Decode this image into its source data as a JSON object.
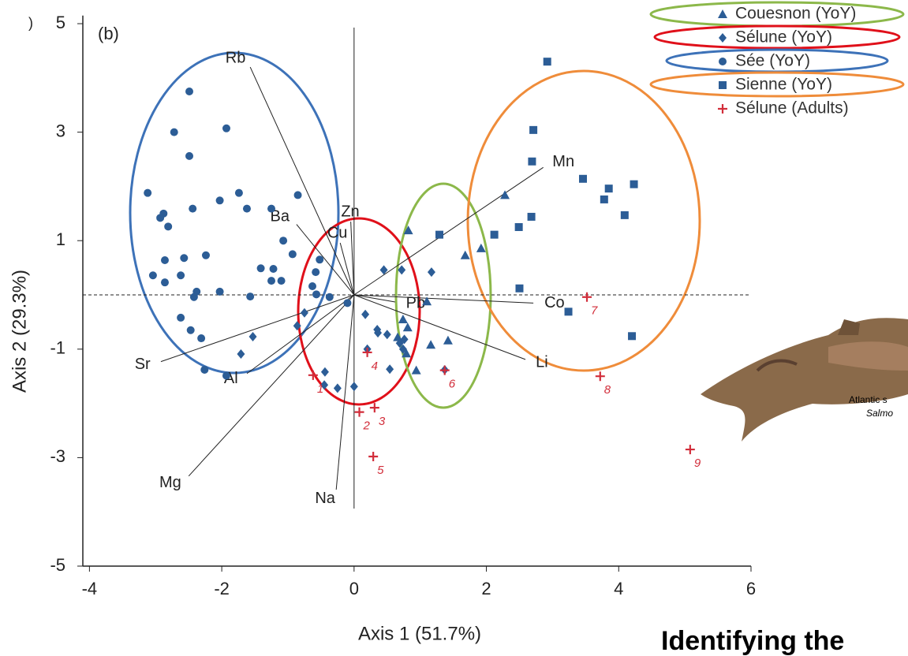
{
  "chart_data": {
    "type": "scatter",
    "panel_label": "(b)",
    "edge_fragment": ")",
    "x_label": "Axis 1 (51.7%)",
    "y_label": "Axis 2 (29.3%)",
    "xlim": [
      -4.1,
      6
    ],
    "ylim": [
      -5,
      5.15
    ],
    "xticks": [
      -4,
      -2,
      0,
      2,
      4,
      6
    ],
    "yticks": [
      -5,
      -3,
      -1,
      1,
      3,
      5
    ],
    "series": [
      {
        "name": "Couesnon (YoY)",
        "color": "#2c5d96",
        "marker": "triangle",
        "x": [
          0.82,
          1.68,
          1.92,
          2.28,
          1.1,
          0.74,
          0.81,
          0.66,
          0.79,
          1.16,
          1.42,
          0.94
        ],
        "values": [
          1.19,
          0.73,
          0.86,
          1.84,
          -0.12,
          -0.45,
          -0.6,
          -0.78,
          -1.08,
          -0.92,
          -0.84,
          -1.39
        ]
      },
      {
        "name": "Sélune (YoY)",
        "color": "#2c5d96",
        "marker": "diamond",
        "x": [
          -0.75,
          -0.86,
          -1.53,
          -1.71,
          -0.44,
          -0.45,
          -0.25,
          0.0,
          0.36,
          0.17,
          0.45,
          0.72,
          1.17,
          0.2,
          0.35,
          0.5,
          0.76,
          0.69,
          0.54,
          0.74,
          1.37
        ],
        "values": [
          -0.33,
          -0.57,
          -0.77,
          -1.09,
          -1.42,
          -1.66,
          -1.72,
          -1.69,
          -0.7,
          -0.36,
          0.46,
          0.46,
          0.42,
          -1.0,
          -0.64,
          -0.73,
          -0.82,
          -0.89,
          -1.37,
          -1.0,
          -1.38
        ]
      },
      {
        "name": "Sée (YoY)",
        "color": "#2c5d96",
        "marker": "circle",
        "x": [
          -2.49,
          -2.72,
          -1.93,
          -2.49,
          -3.12,
          -1.74,
          -0.85,
          -2.44,
          -1.62,
          -2.03,
          -2.88,
          -2.93,
          -2.81,
          -1.25,
          -1.07,
          -0.93,
          -2.86,
          -2.57,
          -2.24,
          -3.04,
          -2.86,
          -2.62,
          -1.41,
          -1.22,
          -1.25,
          -1.1,
          -0.58,
          -0.52,
          -0.63,
          -2.42,
          -2.38,
          -2.03,
          -1.57,
          -2.62,
          -2.47,
          -2.31,
          -2.26,
          -1.93,
          -0.57,
          -0.37,
          -0.1
        ],
        "values": [
          3.75,
          3.0,
          3.07,
          2.56,
          1.88,
          1.88,
          1.84,
          1.59,
          1.59,
          1.74,
          1.5,
          1.42,
          1.26,
          1.59,
          1.0,
          0.75,
          0.64,
          0.68,
          0.73,
          0.36,
          0.23,
          0.36,
          0.49,
          0.48,
          0.26,
          0.26,
          0.42,
          0.65,
          0.16,
          -0.04,
          0.06,
          0.06,
          -0.03,
          -0.42,
          -0.65,
          -0.8,
          -1.38,
          -1.49,
          0.01,
          -0.04,
          -0.15
        ]
      },
      {
        "name": "Sienne (YoY)",
        "color": "#2c5d96",
        "marker": "square",
        "x": [
          2.92,
          2.71,
          2.69,
          3.46,
          3.85,
          3.78,
          4.23,
          4.09,
          2.68,
          2.49,
          2.12,
          1.29,
          2.5,
          3.24,
          4.2
        ],
        "values": [
          4.3,
          3.04,
          2.46,
          2.14,
          1.96,
          1.76,
          2.04,
          1.47,
          1.44,
          1.25,
          1.11,
          1.11,
          0.12,
          -0.31,
          -0.76
        ]
      },
      {
        "name": "Sélune (Adults)",
        "color": "#d22d3a",
        "marker": "plus",
        "x": [
          -0.62,
          0.08,
          0.31,
          0.2,
          0.29,
          1.37,
          3.52,
          3.72,
          5.08
        ],
        "values": [
          -1.48,
          -2.16,
          -2.08,
          -1.06,
          -2.98,
          -1.39,
          -0.04,
          -1.5,
          -2.85
        ],
        "point_labels": [
          "1",
          "2",
          "3",
          "4",
          "5",
          "6",
          "7",
          "8",
          "9"
        ]
      }
    ],
    "vectors": [
      {
        "label": "Rb",
        "x": -1.57,
        "y": 4.2
      },
      {
        "label": "Ba",
        "x": -0.87,
        "y": 1.3
      },
      {
        "label": "Zn",
        "x": -0.05,
        "y": 1.35
      },
      {
        "label": "Cu",
        "x": -0.21,
        "y": 0.96
      },
      {
        "label": "Mn",
        "x": 2.86,
        "y": 2.35
      },
      {
        "label": "Co",
        "x": 2.71,
        "y": -0.15
      },
      {
        "label": "Pb",
        "x": 0.62,
        "y": -0.13
      },
      {
        "label": "Li",
        "x": 2.59,
        "y": -1.19
      },
      {
        "label": "Sr",
        "x": -2.92,
        "y": -1.23
      },
      {
        "label": "Al",
        "x": -1.62,
        "y": -1.45
      },
      {
        "label": "Mg",
        "x": -2.5,
        "y": -3.34
      },
      {
        "label": "Na",
        "x": -0.27,
        "y": -3.59
      }
    ]
  },
  "annotations": {
    "fish_caption_1": "Atlantic s",
    "fish_caption_2": "Salmo",
    "heading": "Identifying the"
  }
}
